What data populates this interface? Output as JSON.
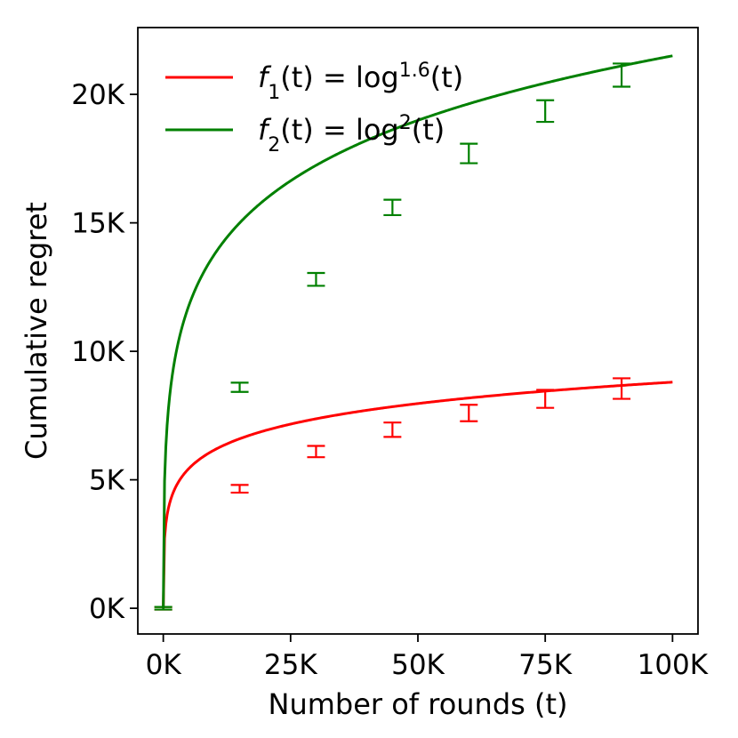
{
  "chart_data": {
    "type": "line",
    "xlabel": "Number of rounds (t)",
    "ylabel": "Cumulative regret",
    "xlim": [
      -5000,
      105000
    ],
    "ylim": [
      -1000,
      22600
    ],
    "xticks": [
      0,
      25000,
      50000,
      75000,
      100000
    ],
    "xtick_labels": [
      "0K",
      "25K",
      "50K",
      "75K",
      "100K"
    ],
    "yticks": [
      0,
      5000,
      10000,
      15000,
      20000
    ],
    "ytick_labels": [
      "0K",
      "5K",
      "10K",
      "15K",
      "20K"
    ],
    "grid": false,
    "legend_position": "top-left",
    "series": [
      {
        "name": "f1(t) = log^1.6(t)",
        "legend_fn": "f",
        "legend_sub": "1",
        "legend_mid": "(t) = log",
        "legend_sup": "1.6",
        "legend_end": "(t)",
        "color": "#ff0000",
        "exponent": 1.6,
        "curve_end": 8800,
        "points": [
          {
            "x": 0,
            "y": 0,
            "err": 50
          },
          {
            "x": 15000,
            "y": 4650,
            "err": 150
          },
          {
            "x": 30000,
            "y": 6100,
            "err": 220
          },
          {
            "x": 45000,
            "y": 6950,
            "err": 280
          },
          {
            "x": 60000,
            "y": 7600,
            "err": 320
          },
          {
            "x": 75000,
            "y": 8150,
            "err": 350
          },
          {
            "x": 90000,
            "y": 8550,
            "err": 400
          }
        ]
      },
      {
        "name": "f2(t) = log^2(t)",
        "legend_fn": "f",
        "legend_sub": "2",
        "legend_mid": "(t) = log",
        "legend_sup": "2",
        "legend_end": "(t)",
        "color": "#008000",
        "exponent": 2.0,
        "curve_end": 21500,
        "points": [
          {
            "x": 0,
            "y": 0,
            "err": 50
          },
          {
            "x": 15000,
            "y": 8600,
            "err": 180
          },
          {
            "x": 30000,
            "y": 12800,
            "err": 250
          },
          {
            "x": 45000,
            "y": 15600,
            "err": 300
          },
          {
            "x": 60000,
            "y": 17700,
            "err": 380
          },
          {
            "x": 75000,
            "y": 19350,
            "err": 420
          },
          {
            "x": 90000,
            "y": 20750,
            "err": 450
          }
        ]
      }
    ]
  }
}
